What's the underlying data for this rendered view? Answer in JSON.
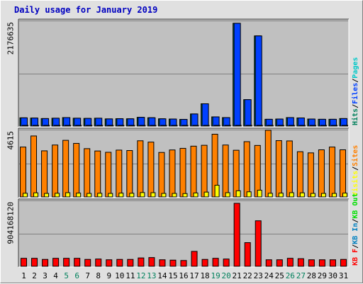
{
  "title": "Daily usage for January 2019",
  "colors": {
    "hits": "#00805c",
    "files": "#0040ff",
    "pages": "#00c8c8",
    "sites": "#ff8000",
    "visits": "#ffff00",
    "kb_in": "#0080c0",
    "kb_out": "#00e000",
    "kb_f": "#ff0000",
    "panel_bg": "#c0c0c0",
    "gridline": "#808080",
    "weekend_label": "#00805c",
    "weekday_label": "#000000"
  },
  "chart_data": [
    {
      "type": "bar",
      "panel": "top",
      "y_max_label": "2176635",
      "ylim": [
        0,
        2176635
      ],
      "legend": [
        {
          "text": "Hits",
          "color": "#00805c"
        },
        {
          "sep": "/"
        },
        {
          "text": "Files",
          "color": "#0040ff"
        },
        {
          "sep": "/"
        },
        {
          "text": "Pages",
          "color": "#00c8c8"
        }
      ],
      "categories": [
        "1",
        "2",
        "3",
        "4",
        "5",
        "6",
        "7",
        "8",
        "9",
        "10",
        "11",
        "12",
        "13",
        "14",
        "15",
        "16",
        "17",
        "18",
        "19",
        "20",
        "21",
        "22",
        "23",
        "24",
        "25",
        "26",
        "27",
        "28",
        "29",
        "30",
        "31"
      ],
      "weekend_days": [
        5,
        6,
        12,
        13,
        19,
        20,
        26,
        27
      ],
      "series": [
        {
          "name": "Hits",
          "values": [
            170000,
            165000,
            155000,
            162000,
            175000,
            162000,
            158000,
            162000,
            148000,
            152000,
            150000,
            180000,
            172000,
            150000,
            145000,
            138000,
            250000,
            460000,
            190000,
            175000,
            2120000,
            545000,
            1860000,
            140000,
            145000,
            175000,
            168000,
            145000,
            140000,
            140000,
            155000
          ]
        },
        {
          "name": "Files",
          "values": [
            170000,
            165000,
            155000,
            162000,
            175000,
            162000,
            158000,
            162000,
            148000,
            152000,
            150000,
            180000,
            172000,
            150000,
            145000,
            138000,
            250000,
            460000,
            190000,
            175000,
            2120000,
            545000,
            1860000,
            140000,
            145000,
            175000,
            168000,
            145000,
            140000,
            140000,
            155000
          ]
        },
        {
          "name": "Pages",
          "values": [
            6000,
            6000,
            6000,
            6000,
            6000,
            6000,
            6000,
            6000,
            6000,
            6000,
            6000,
            6000,
            6000,
            6000,
            6000,
            6000,
            6000,
            6000,
            6000,
            6000,
            6000,
            6000,
            6000,
            6000,
            6000,
            6000,
            6000,
            6000,
            6000,
            6000,
            6000
          ]
        }
      ]
    },
    {
      "type": "bar",
      "panel": "middle",
      "y_max_label": "4615",
      "ylim": [
        0,
        4615
      ],
      "legend": [
        {
          "text": "Visits",
          "color": "#ffff00"
        },
        {
          "sep": "/"
        },
        {
          "text": "Sites",
          "color": "#ff8000"
        }
      ],
      "categories": [
        "1",
        "2",
        "3",
        "4",
        "5",
        "6",
        "7",
        "8",
        "9",
        "10",
        "11",
        "12",
        "13",
        "14",
        "15",
        "16",
        "17",
        "18",
        "19",
        "20",
        "21",
        "22",
        "23",
        "24",
        "25",
        "26",
        "27",
        "28",
        "29",
        "30",
        "31"
      ],
      "series": [
        {
          "name": "Sites",
          "values": [
            3420,
            4180,
            3160,
            3560,
            3880,
            3670,
            3310,
            3150,
            3060,
            3210,
            3180,
            3850,
            3760,
            3050,
            3220,
            3330,
            3480,
            3540,
            4300,
            3560,
            3200,
            3790,
            3530,
            4570,
            3860,
            3840,
            3100,
            3020,
            3230,
            3420,
            3230
          ]
        },
        {
          "name": "Visits",
          "values": [
            250,
            280,
            240,
            250,
            290,
            260,
            240,
            250,
            240,
            260,
            250,
            300,
            290,
            240,
            240,
            230,
            270,
            330,
            800,
            290,
            420,
            350,
            460,
            250,
            260,
            290,
            280,
            240,
            240,
            240,
            260
          ]
        }
      ]
    },
    {
      "type": "bar",
      "panel": "bottom",
      "y_max_label": "904168120",
      "ylim": [
        0,
        904168120
      ],
      "legend": [
        {
          "text": "KB F",
          "color": "#ff0000"
        },
        {
          "sep": "/"
        },
        {
          "text": "KB In",
          "color": "#0080c0"
        },
        {
          "sep": "/"
        },
        {
          "text": "KB Out",
          "color": "#00e000"
        }
      ],
      "categories": [
        "1",
        "2",
        "3",
        "4",
        "5",
        "6",
        "7",
        "8",
        "9",
        "10",
        "11",
        "12",
        "13",
        "14",
        "15",
        "16",
        "17",
        "18",
        "19",
        "20",
        "21",
        "22",
        "23",
        "24",
        "25",
        "26",
        "27",
        "28",
        "29",
        "30",
        "31"
      ],
      "series": [
        {
          "name": "KB F",
          "values": [
            110000000,
            110000000,
            95000000,
            110000000,
            110000000,
            110000000,
            95000000,
            100000000,
            90000000,
            95000000,
            95000000,
            115000000,
            120000000,
            90000000,
            85000000,
            80000000,
            205000000,
            95000000,
            110000000,
            100000000,
            865000000,
            325000000,
            625000000,
            90000000,
            90000000,
            110000000,
            105000000,
            90000000,
            90000000,
            90000000,
            95000000
          ]
        }
      ]
    }
  ]
}
